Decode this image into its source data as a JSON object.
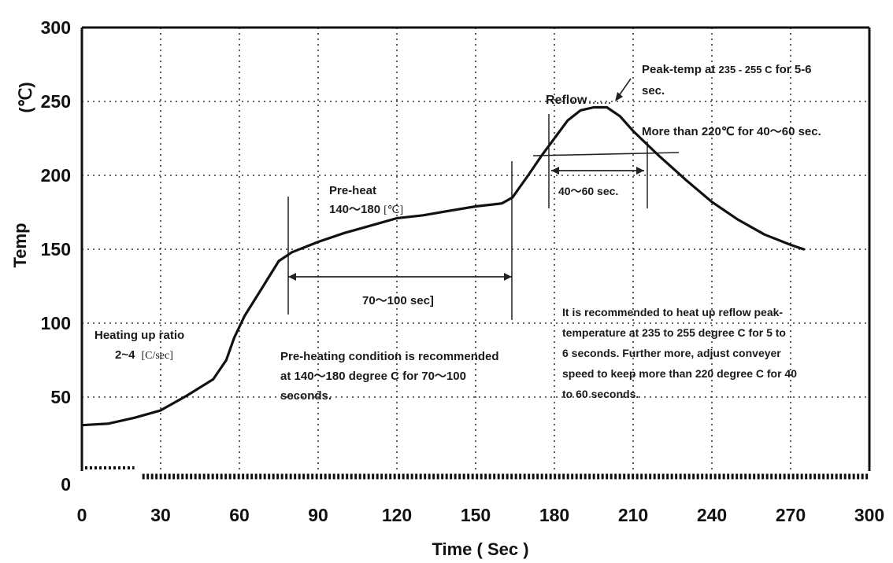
{
  "chart_data": {
    "type": "line",
    "title": "",
    "xlabel": "Time ( Sec )",
    "ylabel": "Temp",
    "yunit": "(℃)",
    "xlim": [
      0,
      300
    ],
    "ylim": [
      0,
      300
    ],
    "xticks": [
      0,
      30,
      60,
      90,
      120,
      150,
      180,
      210,
      240,
      270,
      300
    ],
    "yticks": [
      50,
      100,
      150,
      200,
      250,
      300
    ],
    "y_zero_label": "0",
    "grid": true,
    "series": [
      {
        "x": [
          0,
          10,
          20,
          30,
          40,
          50,
          55,
          58,
          62,
          68,
          75,
          80,
          90,
          100,
          110,
          120,
          130,
          140,
          150,
          160,
          164,
          170,
          175,
          180,
          185,
          190,
          195,
          200,
          205,
          210,
          220,
          230,
          240,
          250,
          260,
          270,
          275
        ],
        "y": [
          31,
          32,
          36,
          41,
          51,
          62,
          75,
          90,
          105,
          122,
          142,
          148,
          155,
          161,
          166,
          171,
          173,
          176,
          179,
          181,
          185,
          200,
          213,
          225,
          237,
          244,
          246,
          246,
          240,
          230,
          213,
          197,
          182,
          170,
          160,
          153,
          150
        ]
      }
    ],
    "annotations": {
      "reflow": "Reflow",
      "peak_line1_a": "Peak-temp at ",
      "peak_line1_b": "235 - 255 C",
      "peak_line1_c": " for 5-6",
      "peak_line2": "sec.",
      "more_than": "More than 220℃ for 40～60 sec.",
      "range_40_60": "40～60 sec.",
      "preheat_title": "Pre-heat",
      "preheat_range_a": "140～180",
      "preheat_range_b": "[℃]",
      "span_70_100": "70～100   sec]",
      "heating_line1": "Heating up ratio",
      "heating_line2_a": "2~4",
      "heating_line2_b": "[C/sec]",
      "preheat_cond": [
        "Pre-heating condition is recommended",
        "at 140～180 degree C for 70～100",
        "seconds."
      ],
      "recommend": [
        "It is recommended to heat up reflow peak-",
        "temperature at  235 to  255 degree C for 5 to",
        "6 seconds. Further more, adjust conveyer",
        "speed to keep more than 220 degree C for 40",
        "to 60  seconds."
      ]
    }
  }
}
